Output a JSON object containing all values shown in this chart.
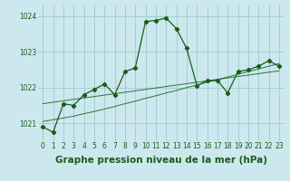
{
  "title": "Graphe pression niveau de la mer (hPa)",
  "background_color": "#cce8ee",
  "grid_color": "#99cccc",
  "line_color": "#1a5c1a",
  "x_values": [
    0,
    1,
    2,
    3,
    4,
    5,
    6,
    7,
    8,
    9,
    10,
    11,
    12,
    13,
    14,
    15,
    16,
    17,
    18,
    19,
    20,
    21,
    22,
    23
  ],
  "y_main": [
    1020.9,
    1020.75,
    1021.55,
    1021.5,
    1021.8,
    1021.95,
    1022.1,
    1021.8,
    1022.45,
    1022.55,
    1023.85,
    1023.88,
    1023.95,
    1023.65,
    1023.1,
    1022.05,
    1022.2,
    1022.2,
    1021.85,
    1022.45,
    1022.5,
    1022.6,
    1022.75,
    1022.6
  ],
  "y_trend1": [
    1021.05,
    1021.1,
    1021.15,
    1021.2,
    1021.27,
    1021.33,
    1021.4,
    1021.47,
    1021.55,
    1021.62,
    1021.7,
    1021.77,
    1021.85,
    1021.92,
    1022.0,
    1022.07,
    1022.15,
    1022.22,
    1022.3,
    1022.37,
    1022.45,
    1022.52,
    1022.6,
    1022.67
  ],
  "y_trend2": [
    1021.55,
    1021.59,
    1021.63,
    1021.67,
    1021.71,
    1021.75,
    1021.79,
    1021.83,
    1021.87,
    1021.91,
    1021.95,
    1021.99,
    1022.03,
    1022.07,
    1022.11,
    1022.15,
    1022.19,
    1022.23,
    1022.27,
    1022.31,
    1022.35,
    1022.39,
    1022.43,
    1022.47
  ],
  "ylim": [
    1020.5,
    1024.3
  ],
  "yticks": [
    1021,
    1022,
    1023,
    1024
  ],
  "xticks": [
    0,
    1,
    2,
    3,
    4,
    5,
    6,
    7,
    8,
    9,
    10,
    11,
    12,
    13,
    14,
    15,
    16,
    17,
    18,
    19,
    20,
    21,
    22,
    23
  ],
  "title_fontsize": 7.5,
  "tick_fontsize": 5.5,
  "figsize": [
    3.2,
    2.0
  ],
  "dpi": 100
}
